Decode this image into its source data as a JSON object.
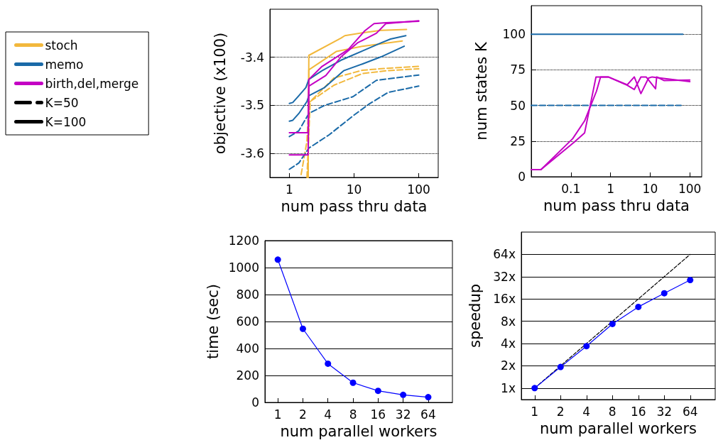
{
  "chart_data": [
    {
      "type": "line",
      "xlabel": "num pass thru data",
      "ylabel": "objective (x100)",
      "log": "x",
      "xlim": [
        0.5,
        200
      ],
      "xticks": [
        1,
        10,
        100
      ],
      "ylim": [
        -3.65,
        -3.3
      ],
      "yticks": [
        -3.6,
        -3.5,
        -3.4
      ],
      "grid": "y",
      "legend": "left",
      "marker": "none",
      "series": [
        {
          "name": "stoch",
          "color": "#f2b83c",
          "line_style": "solid",
          "x": [
            1.95,
            2,
            6.3,
            7.2,
            13.4,
            26.2,
            64.7
          ],
          "values": [
            -3.65,
            -3.396,
            -3.36,
            -3.355,
            -3.349,
            -3.344,
            -3.342
          ]
        },
        {
          "color": "#f2b83c",
          "line_style": "solid",
          "x": [
            1.95,
            2,
            5.3,
            13.4,
            26.2,
            55.6
          ],
          "values": [
            -3.65,
            -3.426,
            -3.388,
            -3.377,
            -3.372,
            -3.366
          ]
        },
        {
          "color": "#f2b83c",
          "line_style": "dashed",
          "x": [
            1.52,
            1.87,
            2,
            4.9,
            13.4,
            31,
            100
          ],
          "values": [
            -3.644,
            -3.575,
            -3.495,
            -3.443,
            -3.427,
            -3.423,
            -3.419
          ]
        },
        {
          "color": "#f2b83c",
          "line_style": "dashed",
          "x": [
            1.87,
            2.1,
            4.9,
            13.4,
            31,
            100
          ],
          "values": [
            -3.65,
            -3.492,
            -3.458,
            -3.434,
            -3.428,
            -3.424
          ]
        },
        {
          "name": "memo",
          "color": "#1a6aa8",
          "line_style": "solid",
          "x": [
            1,
            1.13,
            1.4,
            1.8,
            2,
            3.2,
            6.3,
            13.4,
            26.2,
            36.6,
            63.2
          ],
          "values": [
            -3.496,
            -3.494,
            -3.48,
            -3.463,
            -3.446,
            -3.428,
            -3.406,
            -3.387,
            -3.37,
            -3.362,
            -3.355
          ]
        },
        {
          "color": "#1a6aa8",
          "line_style": "solid",
          "x": [
            1,
            1.13,
            1.4,
            1.87,
            2,
            3.5,
            6.9,
            13.4,
            26.2,
            59.6
          ],
          "values": [
            -3.533,
            -3.531,
            -3.517,
            -3.492,
            -3.48,
            -3.463,
            -3.428,
            -3.414,
            -3.399,
            -3.377
          ]
        },
        {
          "color": "#1a6aa8",
          "line_style": "dashed",
          "x": [
            1,
            1.4,
            2,
            3.5,
            9.6,
            22.1,
            43.3,
            100
          ],
          "values": [
            -3.565,
            -3.553,
            -3.517,
            -3.5,
            -3.482,
            -3.448,
            -3.443,
            -3.437
          ]
        },
        {
          "color": "#1a6aa8",
          "line_style": "dashed",
          "x": [
            1,
            1.4,
            2,
            4.15,
            9.6,
            17.2,
            33.7,
            100
          ],
          "values": [
            -3.633,
            -3.62,
            -3.589,
            -3.561,
            -3.522,
            -3.497,
            -3.473,
            -3.46
          ]
        },
        {
          "name": "birth,del,merge",
          "color": "#c400c4",
          "line_style": "solid",
          "x": [
            1,
            1.95,
            2,
            3.2,
            8.1,
            14.6,
            20.4,
            31,
            100
          ],
          "values": [
            -3.557,
            -3.557,
            -3.446,
            -3.419,
            -3.384,
            -3.345,
            -3.33,
            -3.328,
            -3.325
          ]
        },
        {
          "color": "#c400c4",
          "line_style": "solid",
          "x": [
            1,
            1.95,
            2,
            3.66,
            6.3,
            11.3,
            22.1,
            31,
            100
          ],
          "values": [
            -3.603,
            -3.603,
            -3.46,
            -3.438,
            -3.399,
            -3.37,
            -3.35,
            -3.33,
            -3.324
          ]
        },
        {
          "name": "K=50",
          "color": "#000000",
          "line_style": "dashed"
        },
        {
          "name": "K=100",
          "color": "#000000",
          "line_style": "solid"
        }
      ]
    },
    {
      "type": "line",
      "xlabel": "num pass thru data",
      "ylabel": "num states K",
      "log": "x",
      "xlim": [
        0.01,
        200
      ],
      "xticks": [
        0.1,
        1,
        10,
        100
      ],
      "ylim": [
        0,
        120
      ],
      "yticks": [
        0,
        25,
        50,
        75,
        100
      ],
      "grid": "y",
      "legend": false,
      "marker": "none",
      "series": [
        {
          "color": "#1a6aa8",
          "line_style": "solid",
          "x": [
            0.01,
            66.7
          ],
          "values": [
            100,
            100
          ]
        },
        {
          "color": "#1a6aa8",
          "line_style": "dashed",
          "x": [
            0.01,
            60
          ],
          "values": [
            50,
            50
          ]
        },
        {
          "color": "#c400c4",
          "line_style": "solid",
          "x": [
            0.01,
            0.0175,
            0.111,
            0.222,
            0.442,
            0.56,
            0.877,
            2.64,
            3.98,
            5.84,
            9.1,
            11.2,
            100
          ],
          "values": [
            5,
            5,
            26.7,
            39.2,
            60,
            70,
            70,
            64.5,
            70,
            58.3,
            69.2,
            70,
            66.7
          ]
        },
        {
          "color": "#c400c4",
          "line_style": "solid",
          "x": [
            0.01,
            0.0175,
            0.12,
            0.222,
            0.43,
            0.877,
            2.64,
            3.98,
            5.84,
            7.9,
            13.7,
            14.6,
            22.2,
            100
          ],
          "values": [
            5,
            5,
            24.2,
            30.8,
            70,
            70,
            64.2,
            61.2,
            70,
            70,
            61.7,
            70,
            67.5,
            67.8
          ]
        }
      ]
    },
    {
      "type": "line",
      "xlabel": "num parallel workers",
      "ylabel": "time (sec)",
      "log": "x",
      "xlim": [
        0.7,
        125
      ],
      "xticks": [
        1,
        2,
        4,
        8,
        16,
        32,
        64
      ],
      "ylim": [
        0,
        1200
      ],
      "yticks": [
        0,
        200,
        400,
        600,
        800,
        1000,
        1200
      ],
      "grid": "y",
      "legend": false,
      "marker": "circle",
      "series": [
        {
          "color": "#0000ff",
          "line_style": "solid",
          "x": [
            1,
            2,
            4,
            8,
            16,
            32,
            64
          ],
          "values": [
            1059,
            546,
            287,
            146,
            86,
            56,
            39
          ]
        }
      ]
    },
    {
      "type": "line",
      "xlabel": "num parallel workers",
      "ylabel": "speedup",
      "log": "xy",
      "xlim": [
        0.7,
        125
      ],
      "xticks": [
        1,
        2,
        4,
        8,
        16,
        32,
        64
      ],
      "ylim": [
        0.7,
        128
      ],
      "yticks": [
        {
          "value": 1,
          "label": "1x"
        },
        {
          "value": 2,
          "label": "2x"
        },
        {
          "value": 4,
          "label": "4x"
        },
        {
          "value": 8,
          "label": "8x"
        },
        {
          "value": 16,
          "label": "16x"
        },
        {
          "value": 32,
          "label": "32x"
        },
        {
          "value": 64,
          "label": "64x"
        }
      ],
      "grid": "y",
      "legend": false,
      "marker": "circle",
      "series": [
        {
          "color": "#000000",
          "line_style": "dashed",
          "marker": "none",
          "x": [
            1,
            64
          ],
          "values": [
            1,
            64
          ]
        },
        {
          "color": "#0000ff",
          "line_style": "solid",
          "x": [
            1,
            2,
            4,
            8,
            16,
            32,
            64
          ],
          "values": [
            1,
            1.93,
            3.69,
            7.35,
            12.5,
            19.1,
            28.8
          ]
        }
      ]
    }
  ]
}
